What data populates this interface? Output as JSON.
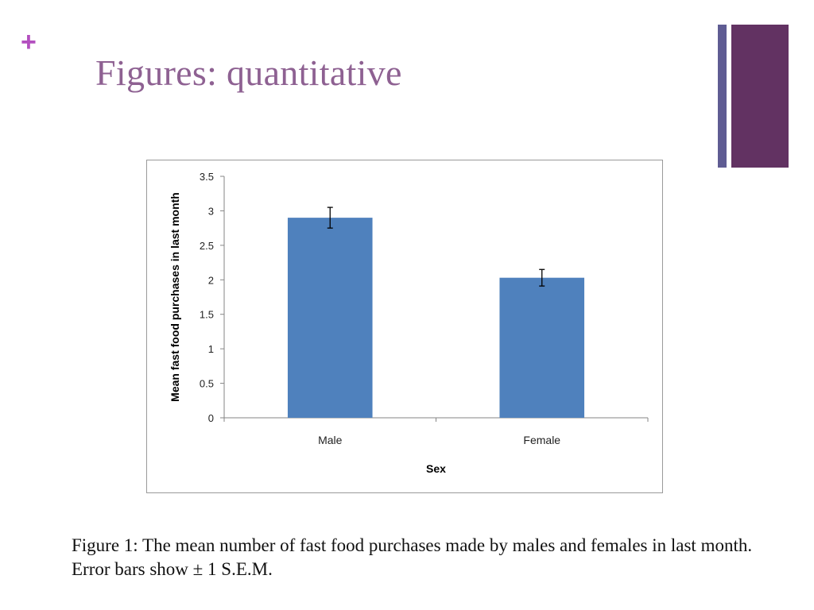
{
  "slide": {
    "plus_symbol": "+",
    "title": "Figures: quantitative",
    "caption": "Figure 1: The mean number of fast food purchases made by males and females in last month. Error bars show ± 1 S.E.M.",
    "colors": {
      "accent_plus": "#b34fbf",
      "title": "#8e6192",
      "accent_bar_thin": "#5f5c93",
      "accent_bar_thick": "#623262"
    }
  },
  "chart_data": {
    "type": "bar",
    "categories": [
      "Male",
      "Female"
    ],
    "values": [
      2.9,
      2.03
    ],
    "error": [
      0.15,
      0.12
    ],
    "xlabel": "Sex",
    "ylabel": "Mean fast food purchases in last month",
    "ylim": [
      0,
      3.5
    ],
    "yticks": [
      "0",
      "0.5",
      "1",
      "1.5",
      "2",
      "2.5",
      "3",
      "3.5"
    ],
    "grid": false,
    "bar_color": "#4f81bd"
  }
}
